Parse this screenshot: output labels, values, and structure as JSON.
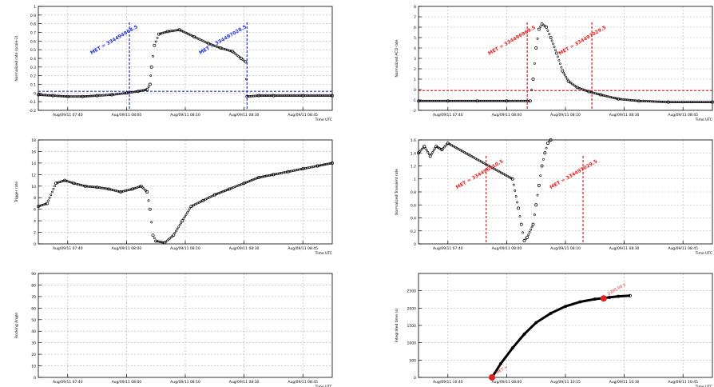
{
  "figure": {
    "background": "#ffffff",
    "frame_color": "#000000",
    "grid_color": "#b0b0b0",
    "marker_color": "#000000",
    "blue": "#2030e0",
    "red": "#e02020"
  },
  "chart_data": [
    {
      "id": "p1",
      "type": "scatter",
      "ylabel": "Normalized rate (scale-2)",
      "xlabel": "Time UTC",
      "xticks": [
        "Aug/09/11 07:40",
        "Aug/09/11 08:00",
        "Aug/09/11 08:10",
        "Aug/09/11 08:30",
        "Aug/09/11 08:45"
      ],
      "ylim": [
        -0.2,
        1.0
      ],
      "yticks": [
        -0.2,
        -0.1,
        0,
        0.1,
        0.2,
        0.3,
        0.4,
        0.5,
        0.6,
        0.7,
        0.8,
        0.9,
        1
      ],
      "grid": true,
      "x_range": [
        0,
        10
      ],
      "series": [
        {
          "x": [
            0,
            0.5,
            1,
            1.5,
            2,
            2.5,
            3,
            3.4,
            3.7,
            3.8,
            3.85,
            3.95,
            4.1,
            4.4,
            4.8,
            5.3,
            5.8,
            6.2,
            6.6,
            6.9,
            7.05,
            7.1,
            7.5,
            8,
            9,
            10
          ],
          "y": [
            -0.02,
            -0.03,
            -0.04,
            -0.04,
            -0.03,
            -0.02,
            0.0,
            0.02,
            0.04,
            0.1,
            0.3,
            0.55,
            0.68,
            0.71,
            0.73,
            0.65,
            0.57,
            0.52,
            0.48,
            0.4,
            0.36,
            -0.04,
            -0.03,
            -0.03,
            -0.03,
            -0.03
          ]
        }
      ],
      "hlines": [
        {
          "y": 0.02,
          "color": "blue"
        }
      ],
      "vlines": [
        {
          "x": 3.1,
          "color": "blue"
        },
        {
          "x": 7.1,
          "color": "blue"
        }
      ],
      "annotations": [
        {
          "text": "MET = 334494968.5",
          "x": 2.6,
          "y": 0.6,
          "color": "blue"
        },
        {
          "text": "MET = 334497028.5",
          "x": 6.3,
          "y": 0.6,
          "color": "blue"
        }
      ]
    },
    {
      "id": "p2",
      "type": "scatter",
      "ylabel": "Normalized ACD rate",
      "xlabel": "Time UTC",
      "xticks": [
        "Aug/09/11 07:40",
        "Aug/09/11 08:00",
        "Aug/09/11 08:10",
        "Aug/09/11 08:30",
        "Aug/09/11 08:45"
      ],
      "ylim": [
        -2,
        8
      ],
      "yticks": [
        -2,
        -1,
        0,
        1,
        2,
        3,
        4,
        5,
        6,
        7,
        8
      ],
      "grid": true,
      "x_range": [
        0,
        10
      ],
      "series": [
        {
          "x": [
            0,
            1,
            2,
            3,
            3.8,
            3.9,
            4.0,
            4.1,
            4.2,
            4.35,
            4.5,
            4.7,
            4.9,
            5.1,
            5.4,
            5.8,
            6.2,
            6.8,
            7.5,
            8.5,
            10
          ],
          "y": [
            -1.1,
            -1.1,
            -1.1,
            -1.1,
            -1.1,
            1.0,
            4.0,
            5.8,
            6.3,
            6.0,
            5.0,
            3.5,
            1.8,
            0.8,
            0.2,
            -0.2,
            -0.5,
            -0.9,
            -1.1,
            -1.2,
            -1.2
          ]
        }
      ],
      "hlines": [
        {
          "y": -0.1,
          "color": "red"
        }
      ],
      "vlines": [
        {
          "x": 3.7,
          "color": "red"
        },
        {
          "x": 5.9,
          "color": "red"
        }
      ],
      "annotations": [
        {
          "text": "MET = 334496969.5",
          "x": 3.2,
          "y": 4.6,
          "color": "red"
        },
        {
          "text": "MET = 334497029.5",
          "x": 5.6,
          "y": 4.6,
          "color": "red"
        }
      ]
    },
    {
      "id": "p3",
      "type": "scatter",
      "ylabel": "Trigger rate",
      "xlabel": "Time UTC",
      "xticks": [
        "Aug/09/11 07:40",
        "Aug/09/11 08:00",
        "Aug/09/11 08:10",
        "Aug/09/11 08:30",
        "Aug/09/11 08:45"
      ],
      "ylim": [
        0,
        18
      ],
      "yticks": [
        0,
        2,
        4,
        6,
        8,
        10,
        12,
        14,
        16,
        18
      ],
      "grid": true,
      "x_range": [
        0,
        10
      ],
      "series": [
        {
          "x": [
            0,
            0.3,
            0.6,
            0.9,
            1.2,
            1.6,
            2,
            2.4,
            2.8,
            3.2,
            3.5,
            3.7,
            3.8,
            3.9,
            4.0,
            4.3,
            4.6,
            4.9,
            5.2,
            5.6,
            6,
            6.5,
            7,
            7.5,
            8,
            8.5,
            9,
            9.5,
            10
          ],
          "y": [
            6.5,
            7,
            10.5,
            11,
            10.5,
            10,
            9.8,
            9.5,
            9,
            9.5,
            10,
            9,
            6,
            1.5,
            0.5,
            0.2,
            1.5,
            4,
            6.5,
            7.5,
            8.5,
            9.5,
            10.5,
            11.5,
            12,
            12.5,
            13,
            13.5,
            14
          ]
        }
      ]
    },
    {
      "id": "p4",
      "type": "scatter",
      "ylabel": "Normalized Transient rate",
      "xlabel": "Time UTC",
      "xticks": [
        "Aug/09/11 07:40",
        "Aug/09/11 08:00",
        "Aug/09/11 08:10",
        "Aug/09/11 08:30",
        "Aug/09/11 08:45"
      ],
      "ylim": [
        0,
        1.6
      ],
      "yticks": [
        0,
        0.2,
        0.4,
        0.6,
        0.8,
        1,
        1.2,
        1.4,
        1.6
      ],
      "grid": true,
      "x_range": [
        0,
        10
      ],
      "series": [
        {
          "x": [
            0,
            0.2,
            0.4,
            0.6,
            0.8,
            1.0,
            3.2,
            3.4,
            3.5,
            3.6,
            3.7,
            3.9,
            4.0,
            4.1,
            4.2,
            4.3,
            4.4,
            4.5
          ],
          "y": [
            1.4,
            1.5,
            1.35,
            1.5,
            1.45,
            1.55,
            1.0,
            0.55,
            0.3,
            0.05,
            0.1,
            0.3,
            0.6,
            0.9,
            1.2,
            1.4,
            1.55,
            1.6
          ]
        }
      ],
      "vlines": [
        {
          "x": 2.3,
          "color": "red"
        },
        {
          "x": 5.6,
          "color": "red"
        }
      ],
      "annotations": [
        {
          "text": "MET = 334496910.5",
          "x": 2.1,
          "y": 1.05,
          "color": "red"
        },
        {
          "text": "MET = 334497029.5",
          "x": 5.3,
          "y": 1.05,
          "color": "red"
        }
      ]
    },
    {
      "id": "p5",
      "type": "scatter",
      "ylabel": "Rocking Angle",
      "xlabel": "Time UTC",
      "xticks": [
        "Aug/09/11 07:40",
        "Aug/09/11 08:00",
        "Aug/09/11 08:10",
        "Aug/09/11 08:30",
        "Aug/09/11 08:45"
      ],
      "ylim": [
        0,
        90
      ],
      "yticks": [
        0,
        10,
        20,
        30,
        40,
        50,
        60,
        70,
        80,
        90
      ],
      "grid": true,
      "x_range": [
        0,
        10
      ],
      "series": []
    },
    {
      "id": "p6",
      "type": "line",
      "ylabel": "Integrated time (s)",
      "xlabel": "Time UTC",
      "xticks": [
        "Aug/09/11 10:40",
        "Aug/09/11 08:00",
        "Aug/09/11 10:15",
        "Aug/09/11 10:30",
        "Aug/09/11 10:45"
      ],
      "ylim": [
        0,
        3000
      ],
      "yticks": [
        0,
        500,
        1000,
        1500,
        2000,
        2500
      ],
      "grid": true,
      "x_range": [
        0,
        10
      ],
      "series": [
        {
          "x": [
            2.5,
            2.8,
            3.2,
            3.6,
            4.0,
            4.5,
            5.0,
            5.5,
            6.0,
            6.5,
            6.8,
            7.2
          ],
          "y": [
            0,
            400,
            850,
            1250,
            1580,
            1850,
            2050,
            2180,
            2260,
            2310,
            2340,
            2360
          ]
        }
      ],
      "markers": [
        {
          "x": 2.5,
          "y": 0,
          "color": "red",
          "label": "MET ="
        },
        {
          "x": 6.3,
          "y": 2280,
          "color": "red",
          "label": "2305.00 s"
        }
      ]
    }
  ]
}
